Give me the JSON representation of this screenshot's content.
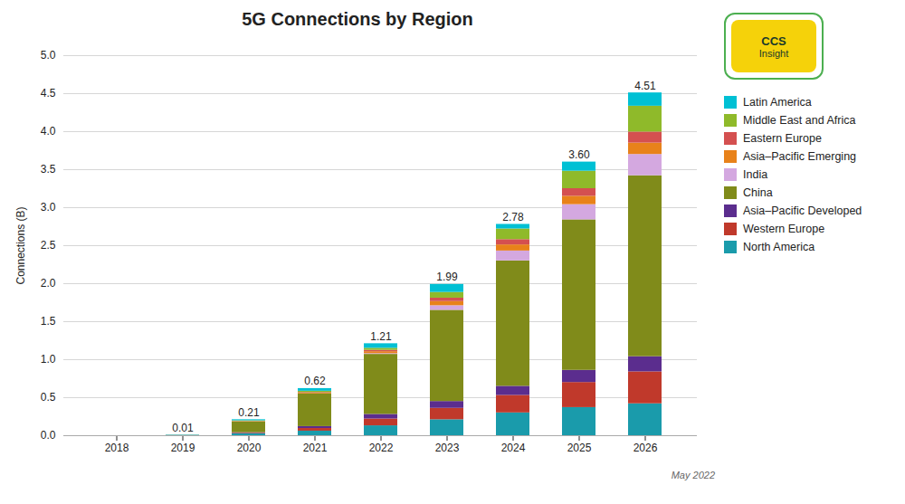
{
  "chart_data": {
    "type": "bar",
    "stacked": true,
    "title": "5G Connections by Region",
    "ylabel": "Connections (B)",
    "categories": [
      "2018",
      "2019",
      "2020",
      "2021",
      "2022",
      "2023",
      "2024",
      "2025",
      "2026"
    ],
    "series": [
      {
        "name": "North America",
        "color": "#1a9bab",
        "values": [
          0.0,
          0.005,
          0.025,
          0.06,
          0.13,
          0.21,
          0.3,
          0.37,
          0.42
        ]
      },
      {
        "name": "Western Europe",
        "color": "#c0392b",
        "values": [
          0.0,
          0.0,
          0.008,
          0.035,
          0.09,
          0.15,
          0.23,
          0.33,
          0.42
        ]
      },
      {
        "name": "Asia–Pacific Developed",
        "color": "#5b2d8e",
        "values": [
          0.0,
          0.0,
          0.007,
          0.025,
          0.06,
          0.09,
          0.12,
          0.16,
          0.2
        ]
      },
      {
        "name": "China",
        "color": "#808b1a",
        "values": [
          0.0,
          0.0,
          0.14,
          0.43,
          0.79,
          1.2,
          1.65,
          1.98,
          2.38
        ]
      },
      {
        "name": "India",
        "color": "#d4a8e0",
        "values": [
          0.0,
          0.0,
          0.0,
          0.0,
          0.01,
          0.06,
          0.13,
          0.2,
          0.28
        ]
      },
      {
        "name": "Asia–Pacific Emerging",
        "color": "#e8821a",
        "values": [
          0.0,
          0.002,
          0.005,
          0.01,
          0.025,
          0.055,
          0.08,
          0.11,
          0.15
        ]
      },
      {
        "name": "Eastern Europe",
        "color": "#d45050",
        "values": [
          0.0,
          0.0,
          0.003,
          0.008,
          0.018,
          0.045,
          0.07,
          0.1,
          0.145
        ]
      },
      {
        "name": "Middle East and Africa",
        "color": "#8fba2a",
        "values": [
          0.0,
          0.0,
          0.008,
          0.017,
          0.027,
          0.075,
          0.14,
          0.23,
          0.34
        ]
      },
      {
        "name": "Latin America",
        "color": "#00c0d4",
        "values": [
          0.0,
          0.003,
          0.014,
          0.035,
          0.06,
          0.105,
          0.06,
          0.12,
          0.175
        ]
      }
    ],
    "totals": [
      0.0,
      0.01,
      0.21,
      0.62,
      1.21,
      1.99,
      2.78,
      3.6,
      4.51
    ],
    "total_labels": [
      null,
      "0.01",
      "0.21",
      "0.62",
      "1.21",
      "1.99",
      "2.78",
      "3.60",
      "4.51"
    ],
    "ylim": [
      0,
      5.0
    ],
    "yticks": [
      {
        "value": 0.0,
        "label": "0.0"
      },
      0.5,
      {
        "value": 1.0,
        "label": "1.0"
      },
      1.5,
      {
        "value": 2.0,
        "label": "2.0"
      },
      2.5,
      {
        "value": 3.0,
        "label": "3.0"
      },
      3.5,
      {
        "value": 4.0,
        "label": "4.0"
      },
      4.5,
      {
        "value": 5.0,
        "label": "5.0"
      }
    ],
    "grid": true,
    "legend": "upper right",
    "caption": "May 2022",
    "annotations": [
      "CCS",
      "Insight"
    ]
  }
}
